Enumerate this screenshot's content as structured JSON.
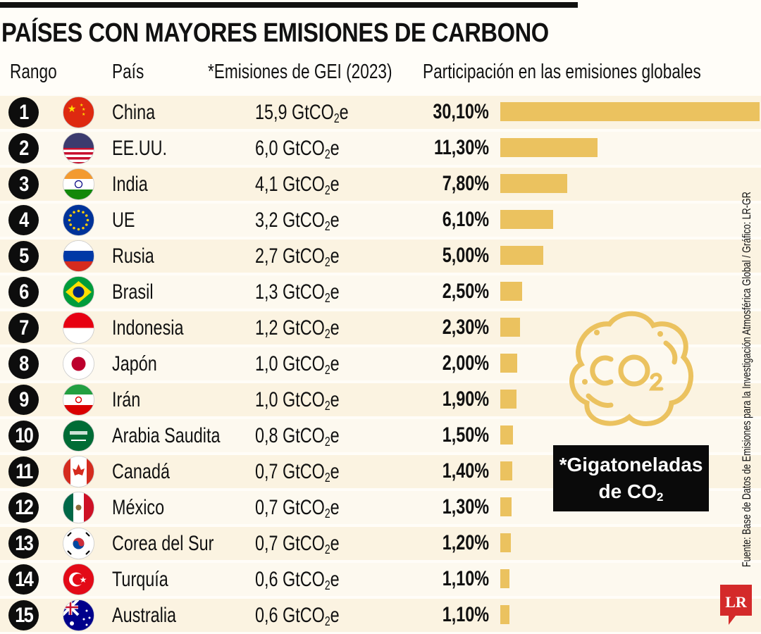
{
  "title": "PAÍSES CON MAYORES EMISIONES DE CARBONO",
  "headers": {
    "rank": "Rango",
    "country": "País",
    "emissions": "*Emisiones de GEI (2023)",
    "share": "Participación en las emisiones globales"
  },
  "note": {
    "line1": "*Gigatoneladas",
    "line2_prefix": "de CO",
    "line2_sub": "2"
  },
  "source": "Fuente: Base de Datos de Emisiones para la Investigación Atmosférica Global / Gráfico: LR-GR",
  "logo_text": "LR",
  "icon": "co2-cloud-icon",
  "colors": {
    "bar": "#ebc25f",
    "rank_badge": "#0d0d0d",
    "logo": "#d42a2a",
    "row_stripe": "#fbf3e1"
  },
  "unit": {
    "prefix": "GtCO",
    "sub": "2",
    "suffix": "e"
  },
  "chart_data": {
    "type": "bar",
    "orientation": "horizontal",
    "title": "PAÍSES CON MAYORES EMISIONES DE CARBONO",
    "categories": [
      "China",
      "EE.UU.",
      "India",
      "UE",
      "Rusia",
      "Brasil",
      "Indonesia",
      "Japón",
      "Irán",
      "Arabia Saudita",
      "Canadá",
      "México",
      "Corea del Sur",
      "Turquía",
      "Australia"
    ],
    "ranks": [
      1,
      2,
      3,
      4,
      5,
      6,
      7,
      8,
      9,
      10,
      11,
      12,
      13,
      14,
      15
    ],
    "flags": [
      "china",
      "usa",
      "india",
      "eu",
      "russia",
      "brazil",
      "indonesia",
      "japan",
      "iran",
      "saudi",
      "canada",
      "mexico",
      "korea",
      "turkey",
      "australia"
    ],
    "emissions_labels": [
      "15,9",
      "6,0",
      "4,1",
      "3,2",
      "2,7",
      "1,3",
      "1,2",
      "1,0",
      "1,0",
      "0,8",
      "0,7",
      "0,7",
      "0,7",
      "0,6",
      "0,6"
    ],
    "emissions_gt": [
      15.9,
      6.0,
      4.1,
      3.2,
      2.7,
      1.3,
      1.2,
      1.0,
      1.0,
      0.8,
      0.7,
      0.7,
      0.7,
      0.6,
      0.6
    ],
    "share_labels": [
      "30,10%",
      "11,30%",
      "7,80%",
      "6,10%",
      "5,00%",
      "2,50%",
      "2,30%",
      "2,00%",
      "1,90%",
      "1,50%",
      "1,40%",
      "1,30%",
      "1,20%",
      "1,10%",
      "1,10%"
    ],
    "values": [
      30.1,
      11.3,
      7.8,
      6.1,
      5.0,
      2.5,
      2.3,
      2.0,
      1.9,
      1.5,
      1.4,
      1.3,
      1.2,
      1.1,
      1.1
    ],
    "xlim": [
      0,
      30.1
    ],
    "grid": false
  }
}
